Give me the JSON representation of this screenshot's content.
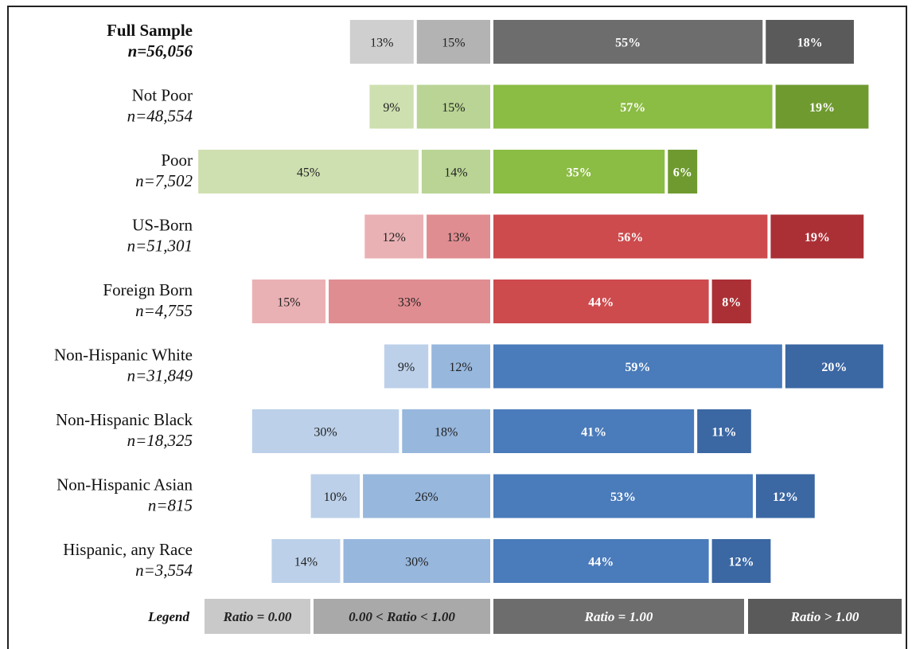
{
  "chart_data": {
    "type": "bar",
    "categories": [
      "Full Sample",
      "Not Poor",
      "Poor",
      "US-Born",
      "Foreign Born",
      "Non-Hispanic White",
      "Non-Hispanic Black",
      "Non-Hispanic Asian",
      "Hispanic, any Race"
    ],
    "n_labels": [
      "n=56,056",
      "n=48,554",
      "n=7,502",
      "n=51,301",
      "n=4,755",
      "n=31,849",
      "n=18,325",
      "n=815",
      "n=3,554"
    ],
    "series": [
      {
        "name": "Ratio = 0.00",
        "values": [
          13,
          9,
          45,
          12,
          15,
          9,
          30,
          10,
          14
        ]
      },
      {
        "name": "0.00 < Ratio < 1.00",
        "values": [
          15,
          15,
          14,
          13,
          33,
          12,
          18,
          26,
          30
        ]
      },
      {
        "name": "Ratio = 1.00",
        "values": [
          55,
          57,
          35,
          56,
          44,
          59,
          41,
          53,
          44
        ]
      },
      {
        "name": "Ratio > 1.00",
        "values": [
          18,
          19,
          6,
          19,
          8,
          20,
          11,
          12,
          12
        ]
      }
    ],
    "unit": "%",
    "legend_title": "Legend",
    "legend_placement": "bottom",
    "row_colors": [
      [
        "#cfcfcf",
        "#b3b3b3",
        "#6d6d6d",
        "#5a5a5a"
      ],
      [
        "#cfe0b0",
        "#b9d494",
        "#8bbc44",
        "#6f9a30"
      ],
      [
        "#cfe0b0",
        "#b9d494",
        "#8bbc44",
        "#6f9a30"
      ],
      [
        "#eab1b4",
        "#e08d91",
        "#cd4a4d",
        "#ab3035"
      ],
      [
        "#eab1b4",
        "#e08d91",
        "#cd4a4d",
        "#ab3035"
      ],
      [
        "#bcd0e9",
        "#97b7dd",
        "#4a7bba",
        "#3b67a3"
      ],
      [
        "#bcd0e9",
        "#97b7dd",
        "#4a7bba",
        "#3b67a3"
      ],
      [
        "#bcd0e9",
        "#97b7dd",
        "#4a7bba",
        "#3b67a3"
      ],
      [
        "#bcd0e9",
        "#97b7dd",
        "#4a7bba",
        "#3b67a3"
      ]
    ],
    "legend_colors": [
      "#c9c9c9",
      "#a9a9a9",
      "#6d6d6d",
      "#5a5a5a"
    ]
  }
}
